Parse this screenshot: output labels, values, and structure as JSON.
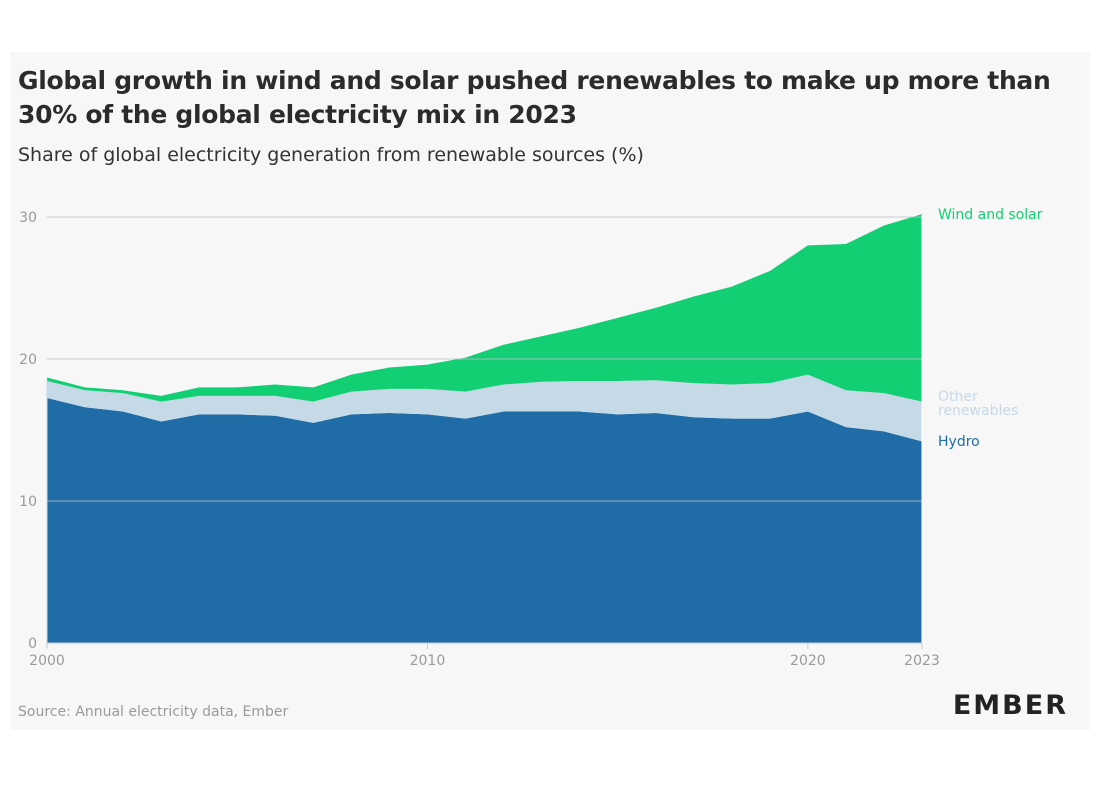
{
  "chart_data": {
    "type": "area",
    "stacked": true,
    "title": "Global growth in wind and solar pushed renewables to make up more than 30% of the global electricity mix in 2023",
    "subtitle": "Share of global electricity generation from renewable sources (%)",
    "xlabel": "",
    "ylabel": "",
    "x": [
      2000,
      2001,
      2002,
      2003,
      2004,
      2005,
      2006,
      2007,
      2008,
      2009,
      2010,
      2011,
      2012,
      2013,
      2014,
      2015,
      2016,
      2017,
      2018,
      2019,
      2020,
      2021,
      2022,
      2023
    ],
    "xticks": [
      "2000",
      "2010",
      "2020",
      "2023"
    ],
    "yticks": [
      "0",
      "10",
      "20",
      "30"
    ],
    "ylim": [
      0,
      30.5
    ],
    "grid": "horizontal",
    "legend": "right, inline labels",
    "series": [
      {
        "name": "Hydro",
        "color": "#1f6ca7",
        "values": [
          17.25,
          16.6,
          16.3,
          15.6,
          16.1,
          16.1,
          16.0,
          15.5,
          16.1,
          16.2,
          16.1,
          15.8,
          16.3,
          16.3,
          16.3,
          16.1,
          16.2,
          15.9,
          15.8,
          15.8,
          16.3,
          15.2,
          14.9,
          14.2
        ]
      },
      {
        "name": "Other renewables",
        "color": "#c6d9e7",
        "values": [
          1.2,
          1.2,
          1.3,
          1.4,
          1.3,
          1.3,
          1.4,
          1.5,
          1.6,
          1.7,
          1.8,
          1.9,
          1.9,
          2.1,
          2.15,
          2.35,
          2.3,
          2.4,
          2.4,
          2.5,
          2.6,
          2.6,
          2.7,
          2.8
        ]
      },
      {
        "name": "Wind and solar",
        "color": "#13cf74",
        "values": [
          0.25,
          0.2,
          0.2,
          0.4,
          0.6,
          0.6,
          0.8,
          1.0,
          1.2,
          1.5,
          1.7,
          2.4,
          2.8,
          3.2,
          3.75,
          4.45,
          5.1,
          6.1,
          6.9,
          7.9,
          9.1,
          10.3,
          11.8,
          13.2
        ]
      }
    ]
  },
  "legend_labels": {
    "wind": "Wind and solar",
    "other_line1": "Other",
    "other_line2": "renewables",
    "hydro": "Hydro"
  },
  "source": "Source: Annual electricity data, Ember",
  "logo": "EMBER"
}
